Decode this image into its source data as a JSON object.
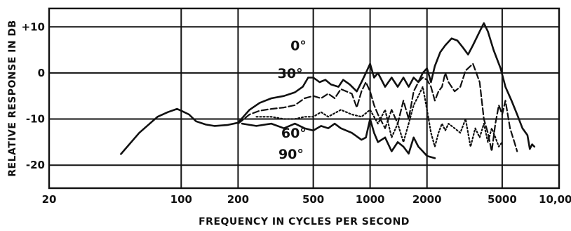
{
  "chart_data": {
    "type": "line",
    "title": "",
    "xlabel": "FREQUENCY IN CYCLES PER SECOND",
    "ylabel": "RELATIVE RESPONSE IN DB",
    "x_scale": "log",
    "xlim": [
      20,
      10000
    ],
    "ylim": [
      -25,
      14
    ],
    "grid": true,
    "x_ticks": [
      {
        "value": 20,
        "label": "20"
      },
      {
        "value": 100,
        "label": "100"
      },
      {
        "value": 200,
        "label": "200"
      },
      {
        "value": 500,
        "label": "500"
      },
      {
        "value": 1000,
        "label": "1000"
      },
      {
        "value": 2000,
        "label": "2000"
      },
      {
        "value": 5000,
        "label": "5000"
      },
      {
        "value": 10000,
        "label": "10,000"
      }
    ],
    "x_grid": [
      100,
      200,
      500,
      1000,
      2000,
      5000
    ],
    "y_ticks": [
      {
        "value": 10,
        "label": "+10"
      },
      {
        "value": 0,
        "label": "0"
      },
      {
        "value": -10,
        "label": "-10"
      },
      {
        "value": -20,
        "label": "-20"
      }
    ],
    "series": [
      {
        "name": "0°",
        "style": "solid",
        "points": [
          [
            48,
            -17.6
          ],
          [
            60,
            -13
          ],
          [
            75,
            -9.5
          ],
          [
            85,
            -8.5
          ],
          [
            95,
            -7.8
          ],
          [
            100,
            -8.2
          ],
          [
            110,
            -9
          ],
          [
            120,
            -10.5
          ],
          [
            135,
            -11.2
          ],
          [
            150,
            -11.5
          ],
          [
            175,
            -11.3
          ],
          [
            200,
            -10.8
          ],
          [
            230,
            -8
          ],
          [
            260,
            -6.5
          ],
          [
            300,
            -5.5
          ],
          [
            350,
            -5
          ],
          [
            400,
            -4.2
          ],
          [
            440,
            -3
          ],
          [
            470,
            -1
          ],
          [
            500,
            -1
          ],
          [
            540,
            -2
          ],
          [
            580,
            -1.5
          ],
          [
            620,
            -2.5
          ],
          [
            680,
            -3
          ],
          [
            720,
            -1.5
          ],
          [
            780,
            -2.5
          ],
          [
            850,
            -4
          ],
          [
            900,
            -2
          ],
          [
            950,
            0
          ],
          [
            1000,
            2
          ],
          [
            1050,
            -1
          ],
          [
            1100,
            0
          ],
          [
            1200,
            -3
          ],
          [
            1300,
            -1
          ],
          [
            1400,
            -3
          ],
          [
            1500,
            -1
          ],
          [
            1600,
            -3
          ],
          [
            1700,
            -1
          ],
          [
            1800,
            -2
          ],
          [
            1900,
            0
          ],
          [
            2000,
            1
          ],
          [
            2100,
            -2
          ],
          [
            2200,
            1.5
          ],
          [
            2350,
            4.5
          ],
          [
            2500,
            6
          ],
          [
            2700,
            7.5
          ],
          [
            2900,
            7
          ],
          [
            3100,
            5.5
          ],
          [
            3300,
            4
          ],
          [
            3500,
            6
          ],
          [
            3800,
            9
          ],
          [
            4000,
            10.8
          ],
          [
            4200,
            9
          ],
          [
            4500,
            5
          ],
          [
            4900,
            1
          ],
          [
            5200,
            -3
          ],
          [
            5600,
            -6
          ],
          [
            6000,
            -9
          ],
          [
            6400,
            -12
          ],
          [
            6800,
            -13.5
          ],
          [
            7000,
            -16.5
          ],
          [
            7200,
            -15.5
          ],
          [
            7400,
            -16
          ]
        ]
      },
      {
        "name": "30°",
        "style": "dashed",
        "points": [
          [
            200,
            -11
          ],
          [
            230,
            -9
          ],
          [
            260,
            -8.2
          ],
          [
            300,
            -7.8
          ],
          [
            350,
            -7.5
          ],
          [
            400,
            -7
          ],
          [
            450,
            -5.5
          ],
          [
            500,
            -5
          ],
          [
            550,
            -5.5
          ],
          [
            600,
            -4.5
          ],
          [
            650,
            -5.5
          ],
          [
            700,
            -3.5
          ],
          [
            800,
            -4.5
          ],
          [
            850,
            -7.5
          ],
          [
            900,
            -4
          ],
          [
            950,
            -2
          ],
          [
            1000,
            -4
          ],
          [
            1050,
            -7
          ],
          [
            1100,
            -9
          ],
          [
            1200,
            -12
          ],
          [
            1300,
            -8
          ],
          [
            1400,
            -11
          ],
          [
            1500,
            -6
          ],
          [
            1600,
            -10
          ],
          [
            1700,
            -4
          ],
          [
            1800,
            -2
          ],
          [
            1900,
            -1
          ],
          [
            2000,
            -1.5
          ],
          [
            2100,
            -3
          ],
          [
            2200,
            -6
          ],
          [
            2300,
            -4
          ],
          [
            2400,
            -3
          ],
          [
            2500,
            0
          ],
          [
            2600,
            -2
          ],
          [
            2800,
            -4
          ],
          [
            3000,
            -3
          ],
          [
            3200,
            0.5
          ],
          [
            3500,
            2
          ],
          [
            3800,
            -2
          ],
          [
            4000,
            -10
          ],
          [
            4200,
            -13
          ],
          [
            4400,
            -17
          ],
          [
            4600,
            -11
          ],
          [
            4800,
            -7
          ],
          [
            5000,
            -9
          ],
          [
            5200,
            -6
          ],
          [
            5500,
            -12
          ],
          [
            5800,
            -15
          ],
          [
            6000,
            -17
          ]
        ]
      },
      {
        "name": "60°",
        "style": "dotted",
        "points": [
          [
            250,
            -9.5
          ],
          [
            300,
            -9.5
          ],
          [
            350,
            -10
          ],
          [
            400,
            -10
          ],
          [
            450,
            -9.5
          ],
          [
            500,
            -9.5
          ],
          [
            550,
            -8.5
          ],
          [
            600,
            -9.5
          ],
          [
            700,
            -8
          ],
          [
            800,
            -9
          ],
          [
            900,
            -9.5
          ],
          [
            1000,
            -8
          ],
          [
            1100,
            -11
          ],
          [
            1200,
            -8
          ],
          [
            1300,
            -14
          ],
          [
            1400,
            -11
          ],
          [
            1500,
            -15
          ],
          [
            1600,
            -11
          ],
          [
            1700,
            -7
          ],
          [
            1800,
            -5
          ],
          [
            1900,
            -3
          ],
          [
            2000,
            -8
          ],
          [
            2100,
            -13
          ],
          [
            2200,
            -16
          ],
          [
            2300,
            -13
          ],
          [
            2400,
            -11
          ],
          [
            2500,
            -12.5
          ],
          [
            2600,
            -11
          ],
          [
            2800,
            -12
          ],
          [
            3000,
            -13
          ],
          [
            3200,
            -10
          ],
          [
            3400,
            -16
          ],
          [
            3600,
            -12
          ],
          [
            3800,
            -14
          ],
          [
            4000,
            -11
          ],
          [
            4200,
            -15
          ],
          [
            4400,
            -12
          ],
          [
            4600,
            -14
          ],
          [
            4800,
            -16
          ],
          [
            5000,
            -15
          ]
        ]
      },
      {
        "name": "90°",
        "style": "solid",
        "points": [
          [
            210,
            -11
          ],
          [
            250,
            -11.5
          ],
          [
            300,
            -11
          ],
          [
            350,
            -12
          ],
          [
            400,
            -11
          ],
          [
            450,
            -12
          ],
          [
            500,
            -12.5
          ],
          [
            550,
            -11.5
          ],
          [
            600,
            -12
          ],
          [
            650,
            -11
          ],
          [
            700,
            -12
          ],
          [
            800,
            -13
          ],
          [
            900,
            -14.5
          ],
          [
            950,
            -14
          ],
          [
            1000,
            -10
          ],
          [
            1050,
            -13
          ],
          [
            1100,
            -15
          ],
          [
            1200,
            -14
          ],
          [
            1300,
            -17
          ],
          [
            1400,
            -15
          ],
          [
            1500,
            -16
          ],
          [
            1600,
            -17.5
          ],
          [
            1700,
            -14
          ],
          [
            1800,
            -16
          ],
          [
            1900,
            -17
          ],
          [
            2000,
            -18
          ],
          [
            2200,
            -18.5
          ]
        ]
      }
    ],
    "labels": [
      {
        "text": "0°",
        "x": 460,
        "y": 6
      },
      {
        "text": "30°",
        "x": 440,
        "y": 0
      },
      {
        "text": "60°",
        "x": 460,
        "y": -13
      },
      {
        "text": "90°",
        "x": 445,
        "y": -17.5
      }
    ]
  }
}
